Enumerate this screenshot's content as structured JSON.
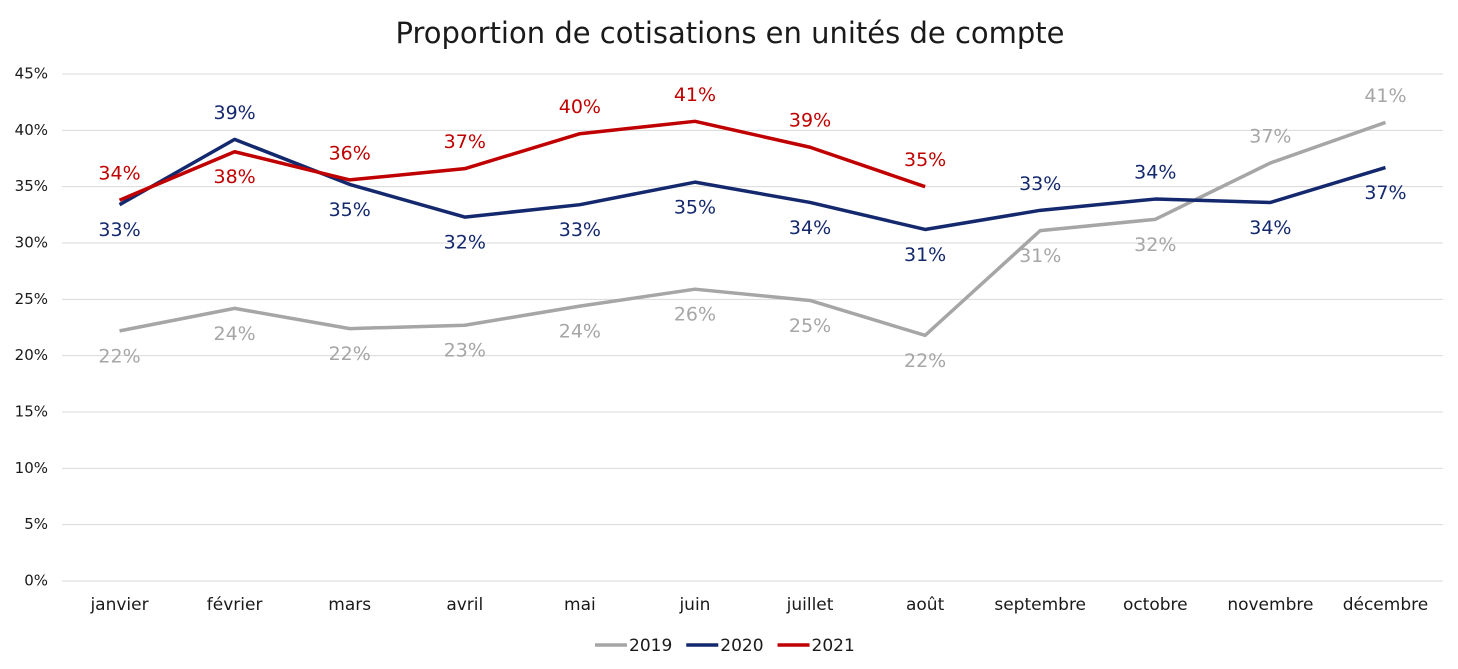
{
  "chart_data": {
    "type": "line",
    "title": "Proportion de cotisations en unités de compte",
    "categories": [
      "janvier",
      "février",
      "mars",
      "avril",
      "mai",
      "juin",
      "juillet",
      "août",
      "septembre",
      "octobre",
      "novembre",
      "décembre"
    ],
    "ylim": [
      0,
      45
    ],
    "yticks": [
      {
        "value": 0,
        "label": "0%"
      },
      {
        "value": 5,
        "label": "5%"
      },
      {
        "value": 10,
        "label": "10%"
      },
      {
        "value": 15,
        "label": "15%"
      },
      {
        "value": 20,
        "label": "20%"
      },
      {
        "value": 25,
        "label": "25%"
      },
      {
        "value": 30,
        "label": "30%"
      },
      {
        "value": 35,
        "label": "35%"
      },
      {
        "value": 40,
        "label": "40%"
      },
      {
        "value": 45,
        "label": "45%"
      }
    ],
    "grid": true,
    "series": [
      {
        "name": "2019",
        "color": "#a6a6a6",
        "values": [
          22.2,
          24.2,
          22.4,
          22.7,
          24.4,
          25.9,
          24.9,
          21.8,
          31.1,
          32.1,
          37.1,
          40.7
        ],
        "value_labels": [
          "22%",
          "24%",
          "22%",
          "23%",
          "24%",
          "26%",
          "25%",
          "22%",
          "31%",
          "32%",
          "37%",
          "41%"
        ]
      },
      {
        "name": "2020",
        "color": "#14286e",
        "values": [
          33.4,
          39.2,
          35.2,
          32.3,
          33.4,
          35.4,
          33.6,
          31.2,
          32.9,
          33.9,
          33.6,
          36.7
        ],
        "value_labels": [
          "33%",
          "39%",
          "35%",
          "32%",
          "33%",
          "35%",
          "34%",
          "31%",
          "33%",
          "34%",
          "34%",
          "37%"
        ]
      },
      {
        "name": "2021",
        "color": "#c00000",
        "values": [
          33.8,
          38.1,
          35.6,
          36.6,
          39.7,
          40.8,
          38.5,
          35.0,
          null,
          null,
          null,
          null
        ],
        "value_labels": [
          "34%",
          "38%",
          "36%",
          "37%",
          "40%",
          "41%",
          "39%",
          "35%",
          null,
          null,
          null,
          null
        ]
      }
    ]
  }
}
